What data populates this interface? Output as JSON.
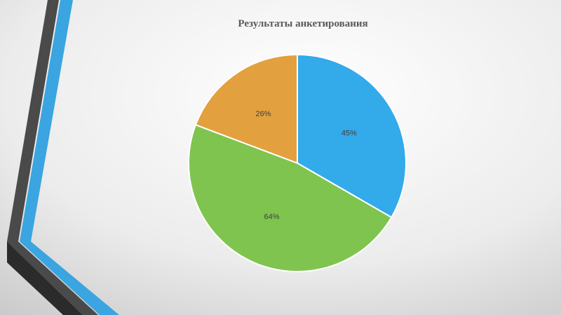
{
  "chart_data": {
    "type": "pie",
    "title": "Результаты анкетирования",
    "categories": [
      null,
      null,
      null
    ],
    "values": [
      45,
      64,
      26
    ],
    "value_labels": [
      "45%",
      "64%",
      "26%"
    ],
    "colors": [
      "#33aaea",
      "#80c450",
      "#e3a03e"
    ]
  }
}
